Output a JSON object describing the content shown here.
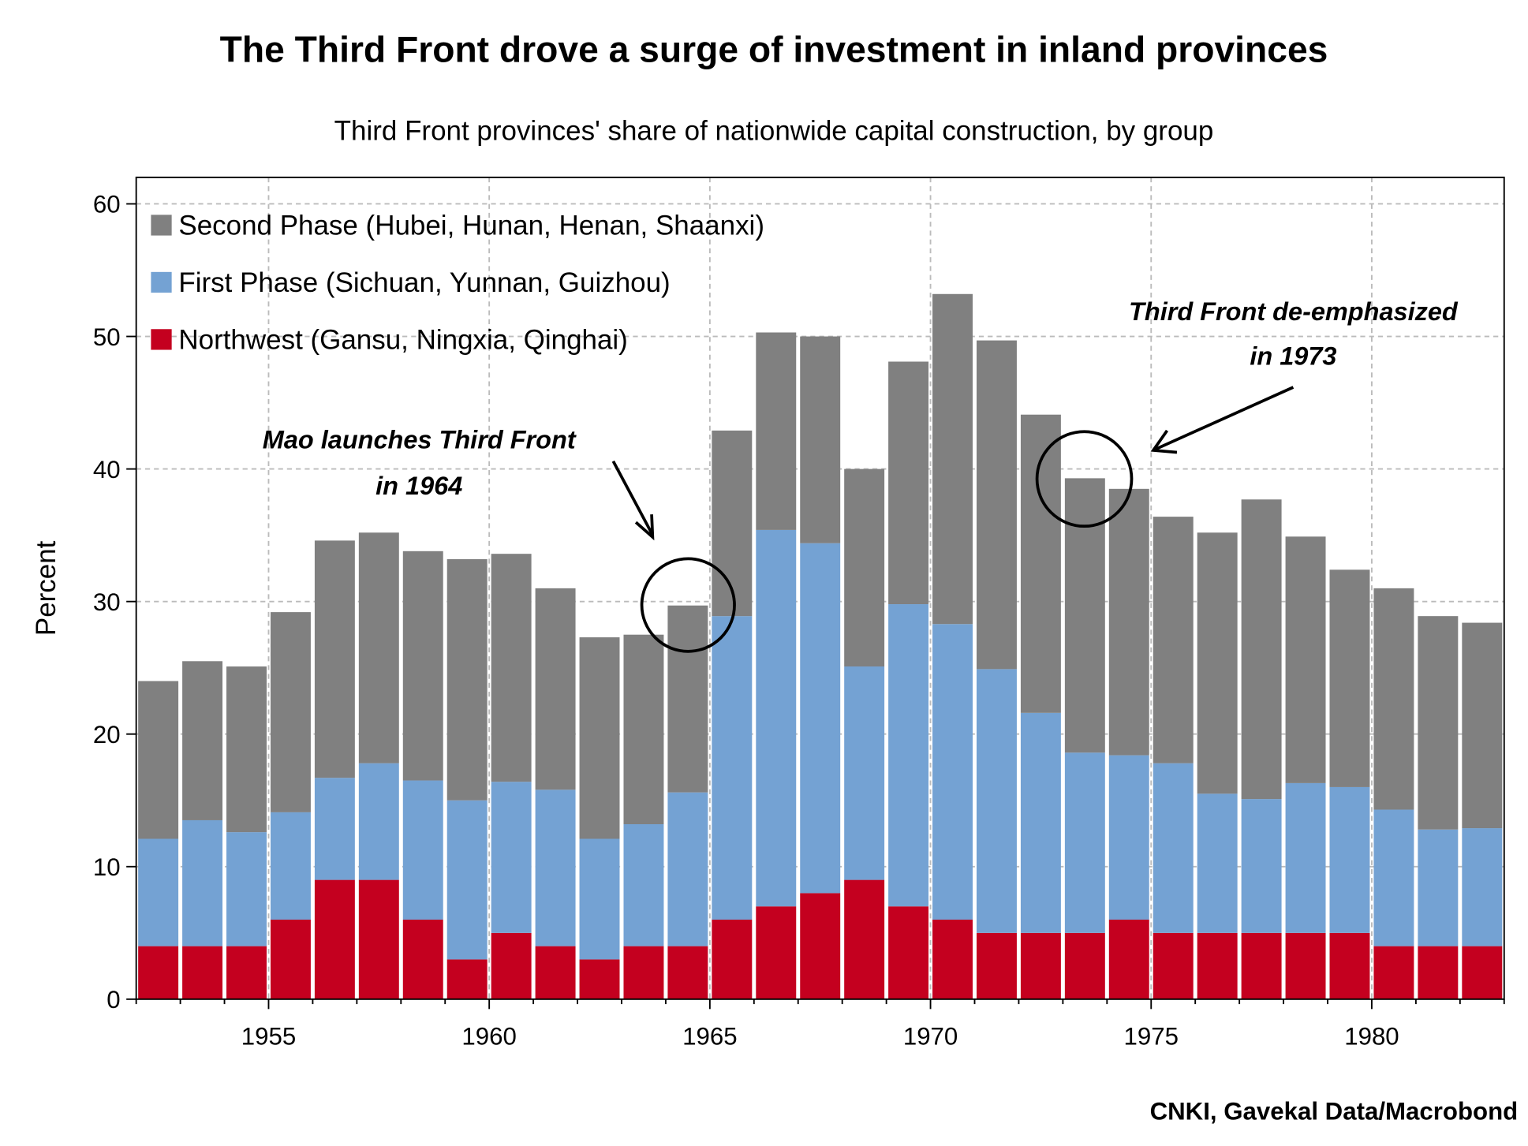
{
  "chart_data": {
    "type": "bar",
    "stacked": true,
    "title": "The Third Front drove a surge of investment in inland provinces",
    "subtitle": "Third Front provinces' share of nationwide capital construction, by group",
    "xlabel": "",
    "ylabel": "Percent",
    "ylim": [
      0,
      62
    ],
    "xlim": [
      1952,
      1983
    ],
    "grid": true,
    "legend_placement": "top-left",
    "x_ticks": [
      "1955",
      "1960",
      "1965",
      "1970",
      "1975",
      "1980"
    ],
    "y_ticks": [
      "0",
      "10",
      "20",
      "30",
      "40",
      "50",
      "60"
    ],
    "categories": [
      1952,
      1953,
      1954,
      1955,
      1956,
      1957,
      1958,
      1959,
      1960,
      1961,
      1962,
      1963,
      1964,
      1965,
      1966,
      1967,
      1968,
      1969,
      1970,
      1971,
      1972,
      1973,
      1974,
      1975,
      1976,
      1977,
      1978,
      1979,
      1980,
      1981,
      1982
    ],
    "series": [
      {
        "name": "Northwest (Gansu, Ningxia, Qinghai)",
        "color": "#c4001f",
        "values": [
          4,
          4,
          4,
          6,
          9,
          9,
          6,
          3,
          5,
          4,
          3,
          4,
          4,
          6,
          7,
          8,
          9,
          7,
          6,
          5,
          5,
          5,
          6,
          5,
          5,
          5,
          5,
          5,
          4,
          4,
          4
        ]
      },
      {
        "name": "First Phase (Sichuan, Yunnan, Guizhou)",
        "color": "#74a2d3",
        "values": [
          8.1,
          9.5,
          8.6,
          8.1,
          7.7,
          8.8,
          10.5,
          12.0,
          11.4,
          11.8,
          9.1,
          9.2,
          11.6,
          22.9,
          28.4,
          26.4,
          16.1,
          22.8,
          22.3,
          19.9,
          16.6,
          13.6,
          12.4,
          12.8,
          10.5,
          10.1,
          11.3,
          11.0,
          10.3,
          8.8,
          8.9
        ]
      },
      {
        "name": "Second Phase (Hubei, Hunan, Henan, Shaanxi)",
        "color": "#808080",
        "values": [
          11.9,
          12.0,
          12.5,
          15.1,
          17.9,
          17.4,
          17.3,
          18.2,
          17.2,
          15.2,
          15.2,
          14.3,
          14.1,
          14.0,
          14.9,
          15.6,
          14.9,
          18.3,
          24.9,
          24.8,
          22.5,
          20.7,
          20.1,
          18.6,
          19.7,
          22.6,
          18.6,
          16.4,
          16.7,
          16.1,
          15.5
        ]
      }
    ],
    "annotations": [
      {
        "text_lines": [
          "Mao launches Third Front",
          "in 1964"
        ],
        "target_year": 1964
      },
      {
        "text_lines": [
          "Third Front de-emphasized",
          "in 1973"
        ],
        "target_year": 1973
      }
    ],
    "source": "CNKI, Gavekal Data/Macrobond"
  }
}
